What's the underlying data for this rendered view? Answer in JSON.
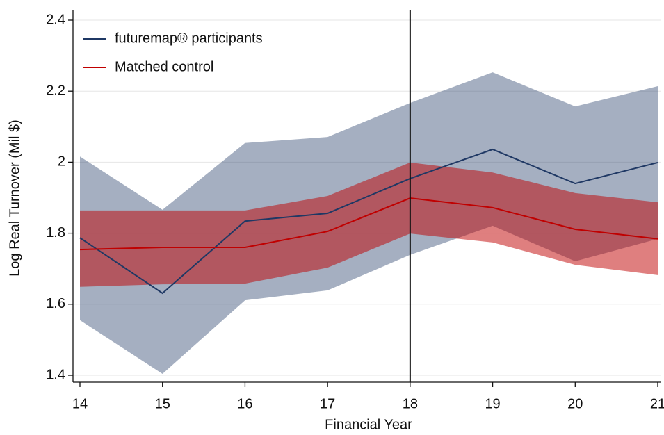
{
  "chart_data": {
    "type": "line",
    "x_label": "Financial Year",
    "y_label": "Log Real Turnover (Mil $)",
    "x": [
      14,
      15,
      16,
      17,
      18,
      19,
      20,
      21
    ],
    "xlim": [
      14,
      21
    ],
    "xticks": [
      14,
      15,
      16,
      17,
      18,
      19,
      20,
      21
    ],
    "ylim": [
      1.4,
      2.4
    ],
    "yticks": [
      1.4,
      1.6,
      1.8,
      2,
      2.2,
      2.4
    ],
    "grid": true,
    "vline": 18,
    "legend": "upper-left",
    "series": [
      {
        "name": "futuremap® participants",
        "color": "#1f3864",
        "values": [
          1.787,
          1.631,
          1.834,
          1.856,
          1.954,
          2.036,
          1.94,
          1.999
        ],
        "upper": [
          2.016,
          1.866,
          2.054,
          2.071,
          2.167,
          2.253,
          2.157,
          2.214
        ],
        "lower": [
          1.555,
          1.404,
          1.611,
          1.639,
          1.739,
          1.821,
          1.721,
          1.784
        ]
      },
      {
        "name": "Matched control",
        "color": "#c00000",
        "values": [
          1.754,
          1.76,
          1.76,
          1.805,
          1.899,
          1.872,
          1.811,
          1.784
        ],
        "upper": [
          1.864,
          1.864,
          1.864,
          1.905,
          1.999,
          1.971,
          1.913,
          1.887
        ],
        "lower": [
          1.649,
          1.656,
          1.658,
          1.703,
          1.799,
          1.774,
          1.711,
          1.682
        ]
      }
    ]
  }
}
